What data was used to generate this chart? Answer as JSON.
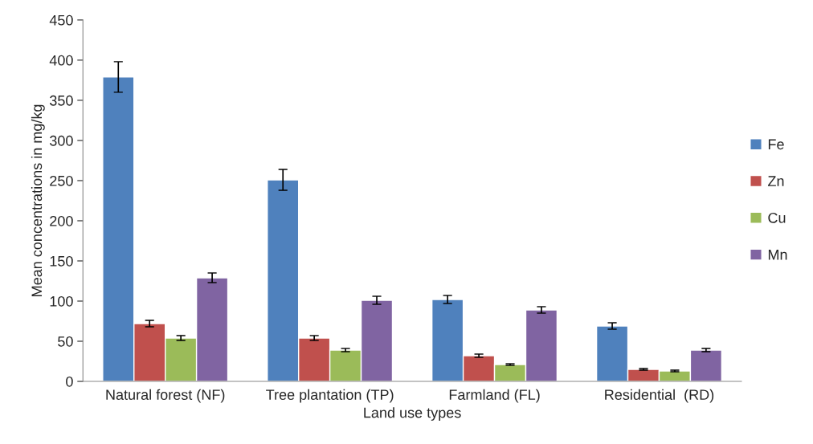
{
  "chart_data": {
    "type": "bar",
    "xlabel": "Land use types",
    "ylabel": "Mean concentrations in mg/kg",
    "categories": [
      "Natural forest (NF)",
      "Tree plantation (TP)",
      "Farmland (FL)",
      "Residential  (RD)"
    ],
    "series": [
      {
        "name": "Fe",
        "color": "#4f81bd",
        "values": [
          379,
          251,
          102,
          69
        ],
        "errors": [
          19,
          13,
          5,
          4
        ]
      },
      {
        "name": "Zn",
        "color": "#c0504d",
        "values": [
          72,
          54,
          32,
          15
        ],
        "errors": [
          4,
          3,
          2,
          1
        ]
      },
      {
        "name": "Cu",
        "color": "#9bbb59",
        "values": [
          54,
          39,
          21,
          13
        ],
        "errors": [
          3,
          2,
          1,
          1
        ]
      },
      {
        "name": "Mn",
        "color": "#8064a2",
        "values": [
          129,
          101,
          89,
          39
        ],
        "errors": [
          6,
          5,
          4,
          2
        ]
      }
    ],
    "ylim": [
      0,
      450
    ],
    "yticks": [
      0,
      50,
      100,
      150,
      200,
      250,
      300,
      350,
      400,
      450
    ],
    "grid": false,
    "legend": "right"
  }
}
